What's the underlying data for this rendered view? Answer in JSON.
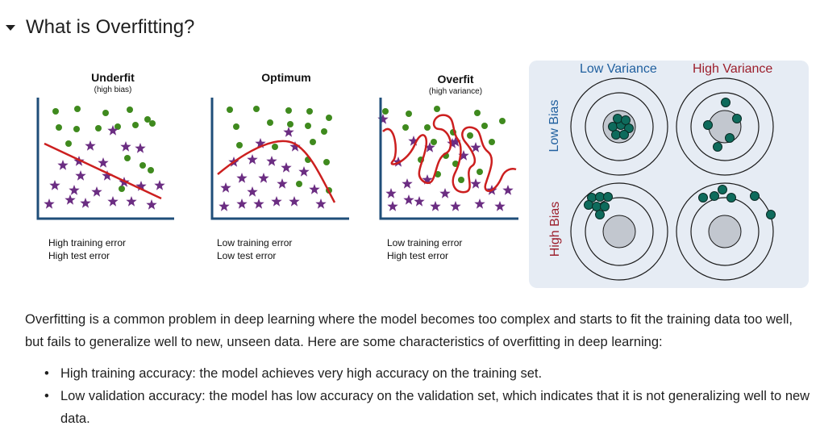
{
  "section": {
    "title": "What is Overfitting?",
    "caret_icon": "caret-down-icon"
  },
  "figure": {
    "panels": [
      {
        "title": "Underfit",
        "subtitle": "(high bias)",
        "caption_line1": "High training error",
        "caption_line2": "High test error"
      },
      {
        "title": "Optimum",
        "subtitle": "",
        "caption_line1": "Low training error",
        "caption_line2": "Low test error"
      },
      {
        "title": "Overfit",
        "subtitle": "(high variance)",
        "caption_line1": "Low training error",
        "caption_line2": "High test error"
      }
    ],
    "colors": {
      "dot": "#3f8a1e",
      "star": "#6b2d82",
      "curve": "#cc1f1f",
      "axis": "#1f4e79",
      "target_dot": "#0e6b5c",
      "low_variance": "#1f5f9e",
      "high_variance": "#9c1f2c"
    }
  },
  "bias_variance": {
    "col_labels": [
      "Low Variance",
      "High Variance"
    ],
    "row_labels": [
      "Low Bias",
      "High Bias"
    ]
  },
  "description": "Overfitting is a common problem in deep learning where the model becomes too complex and starts to fit the training data too well, but fails to generalize well to new, unseen data. Here are some characteristics of overfitting in deep learning:",
  "bullets": [
    "High training accuracy: the model achieves very high accuracy on the training set.",
    "Low validation accuracy: the model has low accuracy on the validation set, which indicates that it is not generalizing well to new data."
  ]
}
